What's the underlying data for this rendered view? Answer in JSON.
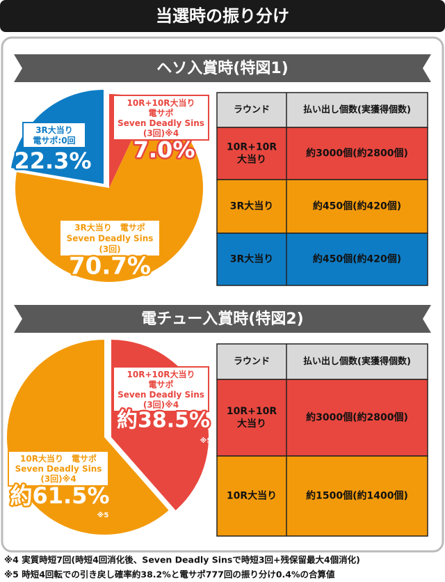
{
  "header": {
    "title": "当選時の振り分け"
  },
  "chart_data": [
    {
      "type": "pie",
      "title": "ヘソ入賞時(特図1)",
      "values": [
        7.0,
        70.7,
        22.3
      ],
      "value_labels": [
        "7.0%",
        "70.7%",
        "22.3%"
      ],
      "labels": [
        [
          "10R+10R大当り",
          "電サポ",
          "Seven Deadly Sins",
          "(3回)※4"
        ],
        [
          "3R大当り　電サポ",
          "Seven Deadly Sins",
          "(3回)"
        ],
        [
          "3R大当り",
          "電サポ:0回"
        ]
      ],
      "colors": [
        "#e8473f",
        "#f39a0b",
        "#0e7cc4"
      ]
    },
    {
      "type": "pie",
      "title": "電チュー入賞時(特図2)",
      "values": [
        38.5,
        61.5
      ],
      "value_labels": [
        "約38.5%",
        "約61.5%"
      ],
      "labels": [
        [
          "10R+10R大当り",
          "電サポ",
          "Seven Deadly Sins",
          "(3回)※4"
        ],
        [
          "10R大当り　電サポ",
          "Seven Deadly Sins",
          "(3回)※4"
        ]
      ],
      "notes": [
        "※5",
        "※5"
      ],
      "colors": [
        "#e8473f",
        "#f39a0b"
      ]
    }
  ],
  "tables": [
    {
      "header": [
        "ラウンド",
        "払い出し個数(実獲得個数)"
      ],
      "rows": [
        [
          [
            "10R+10R",
            "大当り"
          ],
          "約3000個(約2800個)"
        ],
        [
          [
            "3R大当り"
          ],
          "約450個(約420個)"
        ],
        [
          [
            "3R大当り"
          ],
          "約450個(約420個)"
        ]
      ],
      "row_colors": [
        "#e8473f",
        "#f39a0b",
        "#0e7cc4"
      ]
    },
    {
      "header": [
        "ラウンド",
        "払い出し個数(実獲得個数)"
      ],
      "rows": [
        [
          [
            "10R+10R",
            "大当り"
          ],
          "約3000個(約2800個)"
        ],
        [
          [
            "10R大当り"
          ],
          "約1500個(約1400個)"
        ]
      ],
      "row_colors": [
        "#e8473f",
        "#f39a0b"
      ]
    }
  ],
  "footnotes": [
    "※4 実質時短7回(時短4回消化後、Seven Deadly Sinsで時短3回+残保留最大4個消化)",
    "※5 時短4回転での引き戻し確率約38.2%と電サポ777回の振り分け0.4%の合算値"
  ]
}
